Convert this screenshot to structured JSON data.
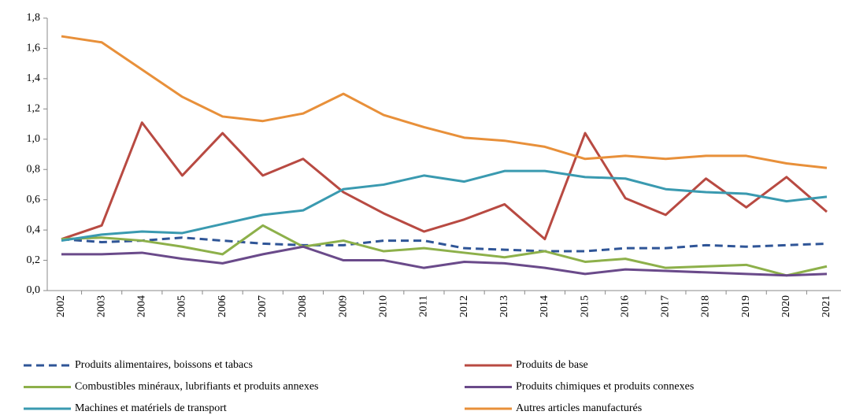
{
  "chart_data": {
    "type": "line",
    "categories": [
      "2002",
      "2003",
      "2004",
      "2005",
      "2006",
      "2007",
      "2008",
      "2009",
      "2010",
      "2011",
      "2012",
      "2013",
      "2014",
      "2015",
      "2016",
      "2017",
      "2018",
      "2019",
      "2020",
      "2021"
    ],
    "ylim": [
      0,
      1.8
    ],
    "yticks": [
      {
        "value": 0,
        "label": "0,0"
      },
      {
        "value": 0.2,
        "label": "0,2"
      },
      {
        "value": 0.4,
        "label": "0,4"
      },
      {
        "value": 0.6,
        "label": "0,6"
      },
      {
        "value": 0.8,
        "label": "0,8"
      },
      {
        "value": 1.0,
        "label": "1,0"
      },
      {
        "value": 1.2,
        "label": "1,2"
      },
      {
        "value": 1.4,
        "label": "1,4"
      },
      {
        "value": 1.6,
        "label": "1,6"
      },
      {
        "value": 1.8,
        "label": "1,8"
      }
    ],
    "grid": false,
    "series": [
      {
        "name": "Produits alimentaires, boissons et tabacs",
        "color": "#2f5597",
        "dashed": true,
        "values": [
          0.34,
          0.32,
          0.33,
          0.35,
          0.33,
          0.31,
          0.3,
          0.3,
          0.33,
          0.33,
          0.28,
          0.27,
          0.26,
          0.26,
          0.28,
          0.28,
          0.3,
          0.29,
          0.3,
          0.31
        ]
      },
      {
        "name": "Produits de base",
        "color": "#b84a42",
        "values": [
          0.34,
          0.43,
          1.11,
          0.76,
          1.04,
          0.76,
          0.87,
          0.65,
          0.51,
          0.39,
          0.47,
          0.57,
          0.34,
          1.04,
          0.61,
          0.5,
          0.74,
          0.55,
          0.75,
          0.52
        ]
      },
      {
        "name": "Combustibles minéraux, lubrifiants et produits annexes",
        "color": "#8db04a",
        "values": [
          0.34,
          0.35,
          0.33,
          0.29,
          0.24,
          0.43,
          0.29,
          0.33,
          0.26,
          0.28,
          0.25,
          0.22,
          0.26,
          0.19,
          0.21,
          0.15,
          0.16,
          0.17,
          0.1,
          0.16
        ]
      },
      {
        "name": "Produits chimiques et produits connexes",
        "color": "#6a4a8a",
        "values": [
          0.24,
          0.24,
          0.25,
          0.21,
          0.18,
          0.24,
          0.29,
          0.2,
          0.2,
          0.15,
          0.19,
          0.18,
          0.15,
          0.11,
          0.14,
          0.13,
          0.12,
          0.11,
          0.1,
          0.11
        ]
      },
      {
        "name": "Machines et matériels de transport",
        "color": "#3a9ab0",
        "values": [
          0.33,
          0.37,
          0.39,
          0.38,
          0.44,
          0.5,
          0.53,
          0.67,
          0.7,
          0.76,
          0.72,
          0.79,
          0.79,
          0.75,
          0.74,
          0.67,
          0.65,
          0.64,
          0.59,
          0.62
        ]
      },
      {
        "name": "Autres articles manufacturés",
        "color": "#e8903a",
        "values": [
          1.68,
          1.64,
          1.46,
          1.28,
          1.15,
          1.12,
          1.17,
          1.3,
          1.16,
          1.08,
          1.01,
          0.99,
          0.95,
          0.87,
          0.89,
          0.87,
          0.89,
          0.89,
          0.84,
          0.81
        ]
      }
    ]
  }
}
